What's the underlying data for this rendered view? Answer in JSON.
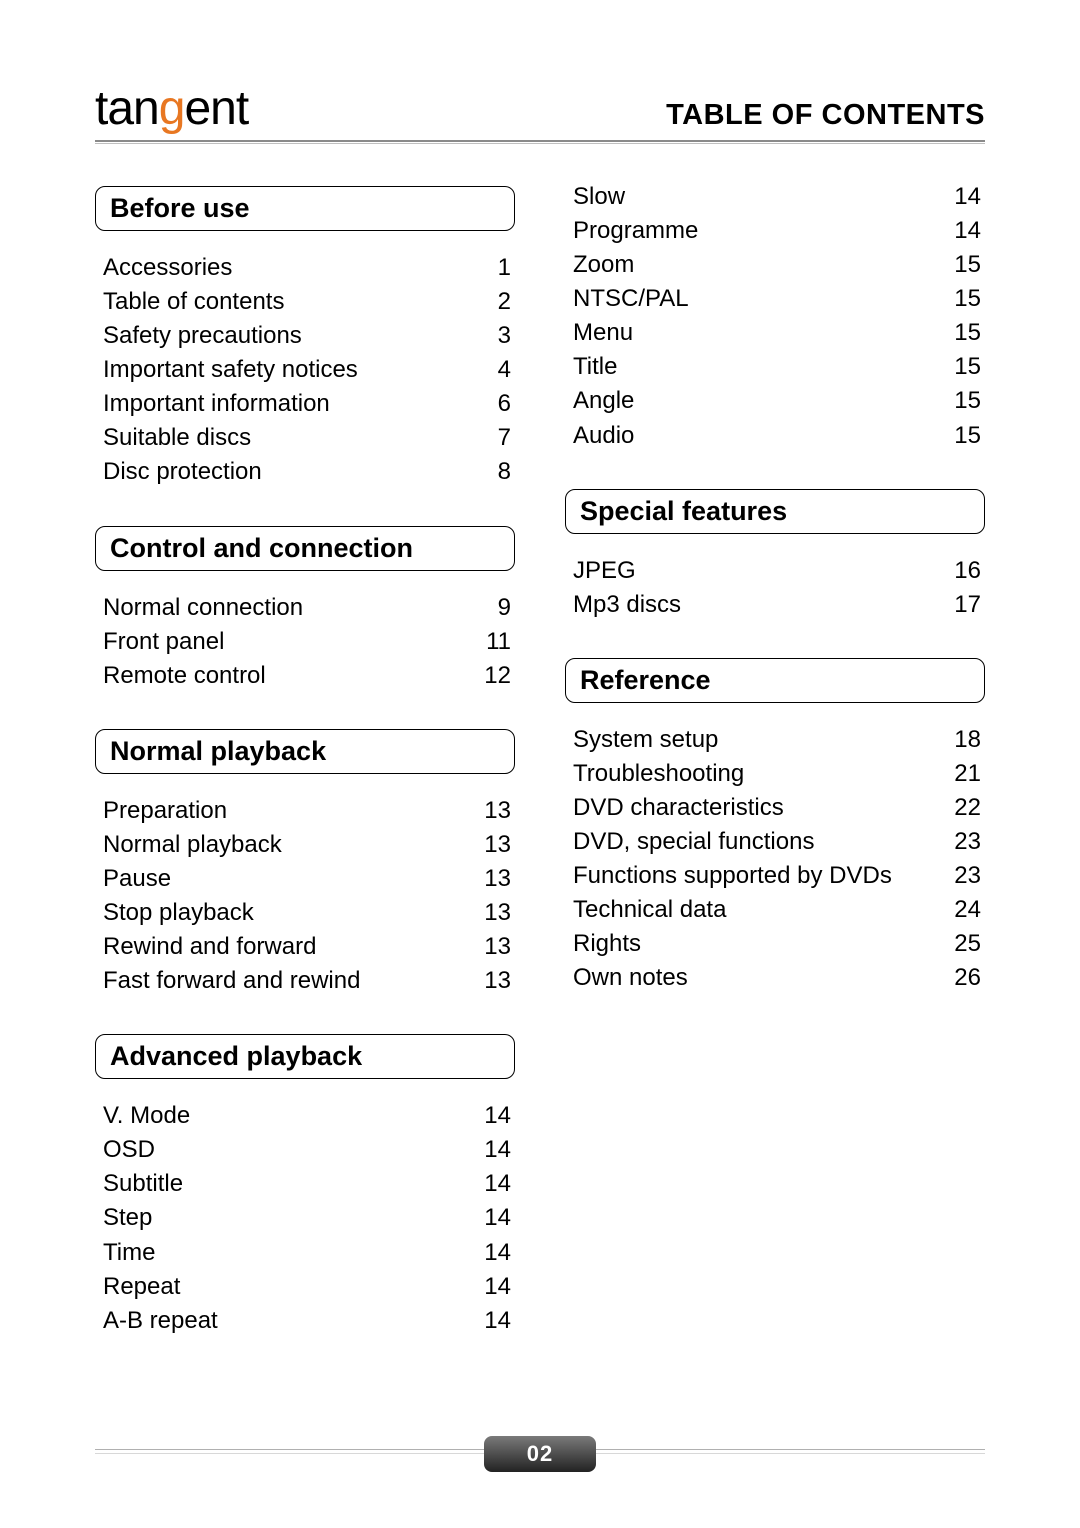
{
  "header": {
    "logo_prefix": "tan",
    "logo_accent": "g",
    "logo_suffix": "ent",
    "title": "TABLE OF CONTENTS"
  },
  "page_number": "02",
  "col_left": [
    {
      "heading": "Before use",
      "items": [
        {
          "label": "Accessories",
          "page": "1"
        },
        {
          "label": "Table of contents",
          "page": "2"
        },
        {
          "label": "Safety precautions",
          "page": "3"
        },
        {
          "label": "Important safety notices",
          "page": "4"
        },
        {
          "label": "Important information",
          "page": "6"
        },
        {
          "label": "Suitable discs",
          "page": "7"
        },
        {
          "label": "Disc protection",
          "page": "8"
        }
      ]
    },
    {
      "heading": "Control and connection",
      "items": [
        {
          "label": "Normal connection",
          "page": "9"
        },
        {
          "label": "Front panel",
          "page": "11"
        },
        {
          "label": "Remote control",
          "page": "12"
        }
      ]
    },
    {
      "heading": "Normal playback",
      "items": [
        {
          "label": "Preparation",
          "page": "13"
        },
        {
          "label": "Normal playback",
          "page": "13"
        },
        {
          "label": "Pause",
          "page": "13"
        },
        {
          "label": "Stop playback",
          "page": "13"
        },
        {
          "label": "Rewind and forward",
          "page": "13"
        },
        {
          "label": "Fast forward and rewind",
          "page": "13"
        }
      ]
    },
    {
      "heading": "Advanced playback",
      "items": [
        {
          "label": "V. Mode",
          "page": "14"
        },
        {
          "label": "OSD",
          "page": "14"
        },
        {
          "label": "Subtitle",
          "page": "14"
        },
        {
          "label": "Step",
          "page": "14"
        },
        {
          "label": "Time",
          "page": "14"
        },
        {
          "label": "Repeat",
          "page": "14"
        },
        {
          "label": "A-B repeat",
          "page": "14"
        }
      ]
    }
  ],
  "col_right": [
    {
      "heading": null,
      "items": [
        {
          "label": "Slow",
          "page": "14"
        },
        {
          "label": "Programme",
          "page": "14"
        },
        {
          "label": "Zoom",
          "page": "15"
        },
        {
          "label": "NTSC/PAL",
          "page": "15"
        },
        {
          "label": "Menu",
          "page": "15"
        },
        {
          "label": "Title",
          "page": "15"
        },
        {
          "label": "Angle",
          "page": "15"
        },
        {
          "label": "Audio",
          "page": "15"
        }
      ]
    },
    {
      "heading": "Special features",
      "items": [
        {
          "label": "JPEG",
          "page": "16"
        },
        {
          "label": "Mp3 discs",
          "page": "17"
        }
      ]
    },
    {
      "heading": "Reference",
      "items": [
        {
          "label": "System setup",
          "page": "18"
        },
        {
          "label": "Troubleshooting",
          "page": "21"
        },
        {
          "label": "DVD characteristics",
          "page": "22"
        },
        {
          "label": "DVD, special functions",
          "page": "23"
        },
        {
          "label": "Functions supported by DVDs",
          "page": "23"
        },
        {
          "label": "Technical data",
          "page": "24"
        },
        {
          "label": "Rights",
          "page": "25"
        },
        {
          "label": "Own notes",
          "page": "26"
        }
      ]
    }
  ]
}
